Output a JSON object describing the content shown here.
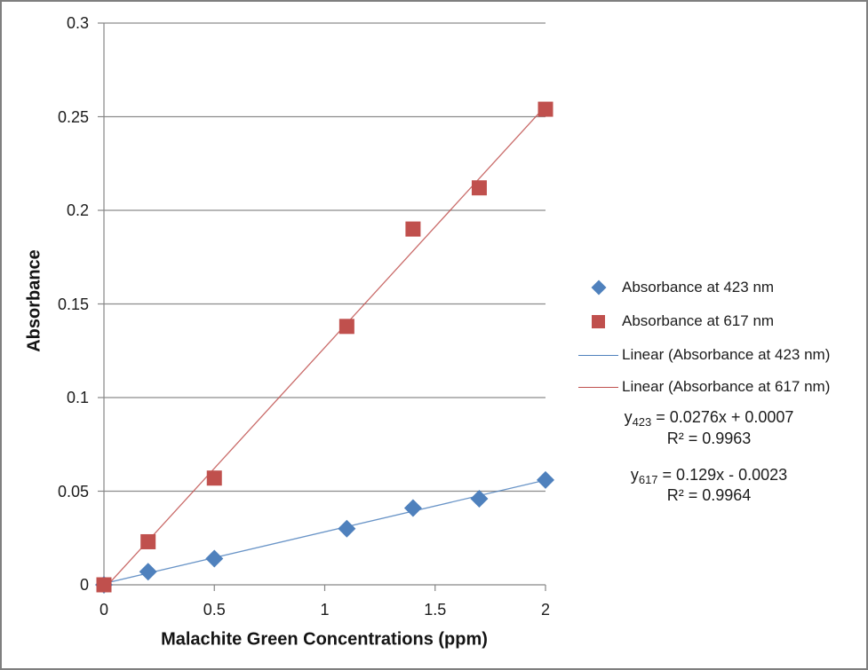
{
  "chart_data": {
    "type": "scatter",
    "title": "",
    "xlabel": "Malachite Green Concentrations (ppm)",
    "ylabel": "Absorbance",
    "xlim": [
      0,
      2
    ],
    "ylim": [
      0,
      0.3
    ],
    "x_ticks": [
      0,
      0.5,
      1,
      1.5,
      2
    ],
    "x_tick_labels": [
      "0",
      "0.5",
      "1",
      "1.5",
      "2"
    ],
    "y_ticks": [
      0,
      0.05,
      0.1,
      0.15,
      0.2,
      0.25,
      0.3
    ],
    "y_tick_labels": [
      "0",
      "0.05",
      "0.1",
      "0.15",
      "0.2",
      "0.25",
      "0.3"
    ],
    "grid": "horizontal",
    "legend_position": "right",
    "x": [
      0,
      0.2,
      0.5,
      1.1,
      1.4,
      1.7,
      2
    ],
    "series": [
      {
        "name": "Absorbance at 423 nm",
        "marker": "diamond",
        "color": "#4f81bd",
        "values": [
          0.0,
          0.007,
          0.014,
          0.03,
          0.041,
          0.046,
          0.056
        ],
        "trendline": {
          "label": "Linear (Absorbance at 423 nm)",
          "slope": 0.0276,
          "intercept": 0.0007,
          "r2": 0.9963
        }
      },
      {
        "name": "Absorbance at 617 nm",
        "marker": "square",
        "color": "#c0504d",
        "values": [
          0.0,
          0.023,
          0.057,
          0.138,
          0.19,
          0.212,
          0.254
        ],
        "trendline": {
          "label": "Linear (Absorbance at 617 nm)",
          "slope": 0.129,
          "intercept": -0.0023,
          "r2": 0.9964
        }
      }
    ]
  },
  "legend": {
    "items": [
      {
        "label": "Absorbance at 423 nm",
        "marker": "diamond",
        "color": "#4f81bd"
      },
      {
        "label": "Absorbance at 617 nm",
        "marker": "square",
        "color": "#c0504d"
      },
      {
        "label": "Linear (Absorbance at 423 nm)",
        "marker": "line",
        "color": "#4f81bd"
      },
      {
        "label": "Linear (Absorbance at 617 nm)",
        "marker": "line",
        "color": "#c0504d"
      }
    ]
  },
  "equations": {
    "eq423": {
      "lhs": "y",
      "sub": "423",
      "rhs": " = 0.0276x + 0.0007",
      "r2": "R² = 0.9963"
    },
    "eq617": {
      "lhs": "y",
      "sub": "617",
      "rhs": " = 0.129x - 0.0023",
      "r2": "R² = 0.9964"
    }
  },
  "colors": {
    "series_423": "#4f81bd",
    "series_617": "#c0504d",
    "gridline": "#8c8c8c",
    "axis_line": "#868686",
    "text": "#1c1c1c",
    "frame_border": "#7f7f7f",
    "background": "#ffffff"
  }
}
